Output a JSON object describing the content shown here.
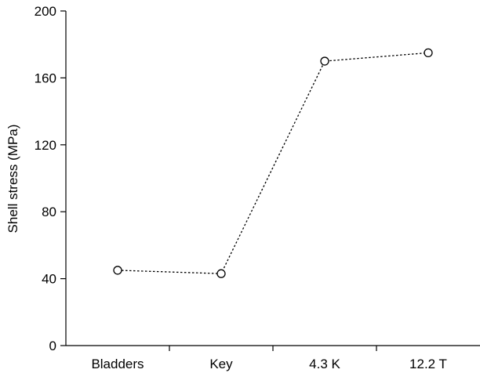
{
  "chart_data": {
    "type": "line",
    "categories": [
      "Bladders",
      "Key",
      "4.3 K",
      "12.2 T"
    ],
    "series": [
      {
        "values": [
          45,
          43,
          170,
          175
        ]
      }
    ],
    "title": "",
    "xlabel": "",
    "ylabel": "Shell stress (MPa)",
    "ylim": [
      0,
      200
    ],
    "yticks": [
      0,
      40,
      80,
      120,
      160,
      200
    ],
    "grid": false,
    "line_style": "dotted",
    "marker": "open-circle",
    "colors": {
      "line": "#000000",
      "marker_fill": "#ffffff",
      "axis": "#000000"
    }
  }
}
